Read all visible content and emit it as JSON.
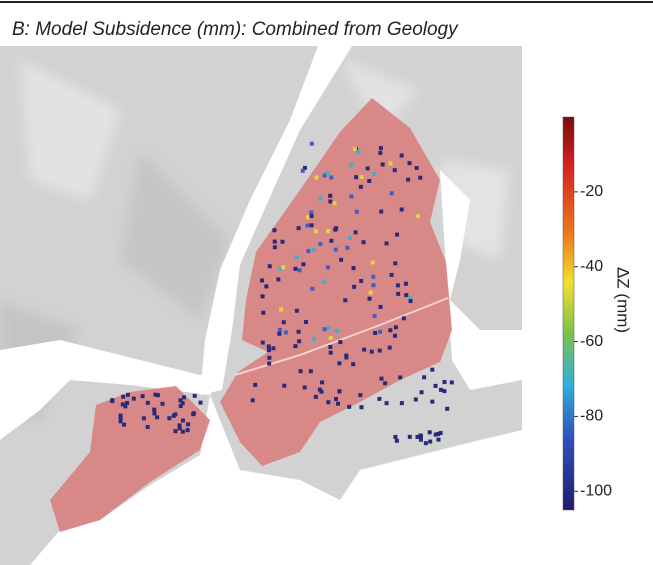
{
  "map": {
    "title": "B: Model Subsidence (mm): Combined from Geology",
    "colorbar": {
      "label": "ΔZ (mm)",
      "lim": [
        -105,
        0
      ],
      "ticks": [
        -20,
        -40,
        -60,
        -80,
        -100
      ]
    }
  }
}
